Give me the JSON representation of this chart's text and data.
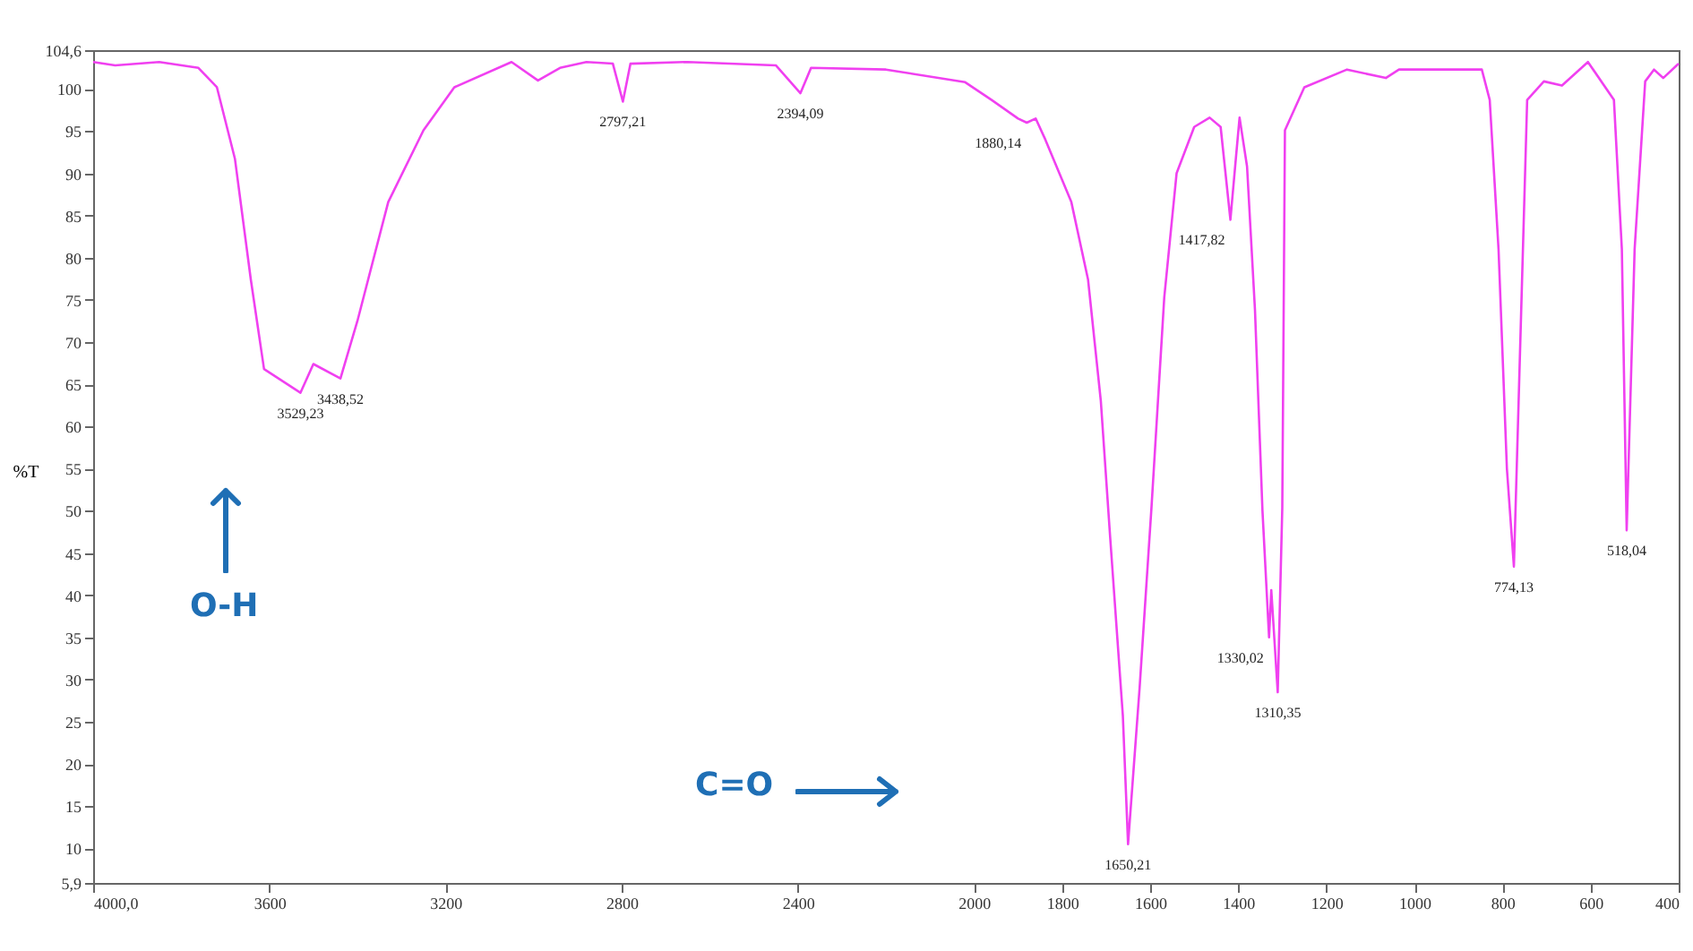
{
  "chart_data": {
    "type": "line",
    "ylabel": "%T",
    "xlim": [
      4000,
      400
    ],
    "xticks": [
      {
        "value": 4000,
        "label": "4000,0"
      },
      3600,
      3200,
      2800,
      2400,
      2000,
      1800,
      1600,
      1400,
      1200,
      1000,
      800,
      600,
      400
    ],
    "ylim": [
      5.9,
      104.6
    ],
    "yticks": [
      {
        "value": 5.9,
        "label": "5,9"
      },
      10,
      15,
      20,
      25,
      30,
      35,
      40,
      45,
      50,
      55,
      60,
      65,
      70,
      75,
      80,
      85,
      90,
      95,
      100,
      {
        "value": 104.6,
        "label": "104,6"
      }
    ],
    "grid": false,
    "marker": "none",
    "line_style": "solid",
    "series": [
      {
        "color": "#f040f0",
        "x": [
          4000,
          3950,
          3850,
          3761,
          3719,
          3678,
          3642,
          3612,
          3529.23,
          3500,
          3438.52,
          3400,
          3330,
          3250,
          3180,
          3050,
          2990,
          2940,
          2880,
          2820,
          2797.21,
          2780,
          2650,
          2450,
          2394.09,
          2370,
          2200,
          2020,
          1960,
          1900,
          1880.14,
          1860,
          1838,
          1779,
          1741,
          1712,
          1691,
          1662,
          1650.21,
          1624,
          1597,
          1568,
          1540,
          1500,
          1465,
          1440,
          1417.82,
          1405,
          1397,
          1380,
          1362,
          1345,
          1330.02,
          1325,
          1310.35,
          1300,
          1294,
          1250,
          1153,
          1065,
          1035,
          847,
          829,
          809,
          790,
          774.13,
          765,
          744,
          706,
          665,
          606,
          547,
          529,
          518.04,
          500,
          476,
          456,
          435,
          400
        ],
        "values": [
          103.2,
          102.8,
          103.2,
          102.5,
          100.2,
          91.7,
          77.4,
          66.8,
          64,
          67.4,
          65.7,
          72.5,
          86.6,
          95.1,
          100.2,
          103.2,
          101,
          102.5,
          103.2,
          103,
          98.5,
          103,
          103.2,
          102.8,
          99.5,
          102.5,
          102.3,
          100.8,
          98.7,
          96.5,
          96,
          96.5,
          94,
          86.6,
          77.4,
          63,
          47,
          25.7,
          10.5,
          29,
          50.4,
          75.3,
          90,
          95.5,
          96.6,
          95.5,
          84.5,
          92,
          96.6,
          90.8,
          73.8,
          50,
          35,
          40.6,
          28.5,
          50.4,
          95.1,
          100.2,
          102.3,
          101.3,
          102.3,
          102.3,
          98.7,
          81,
          55,
          43.4,
          60,
          98.7,
          100.9,
          100.4,
          103.2,
          98.7,
          81,
          47.7,
          81,
          100.9,
          102.3,
          101.3,
          103
        ]
      }
    ],
    "annotations": [
      {
        "text": "3529,23",
        "x": 3529.23,
        "y": 64
      },
      {
        "text": "3438,52",
        "x": 3438.52,
        "y": 65.7
      },
      {
        "text": "2797,21",
        "x": 2797.21,
        "y": 98.5
      },
      {
        "text": "2394,09",
        "x": 2394.09,
        "y": 99.5
      },
      {
        "text": "1880,14",
        "x": 1880.14,
        "y": 96
      },
      {
        "text": "1417,82",
        "x": 1417.82,
        "y": 84.5
      },
      {
        "text": "1650,21",
        "x": 1650.21,
        "y": 10.5
      },
      {
        "text": "1330,02",
        "x": 1330.02,
        "y": 35
      },
      {
        "text": "1310,35",
        "x": 1310.35,
        "y": 28.5
      },
      {
        "text": "774,13",
        "x": 774.13,
        "y": 43.4
      },
      {
        "text": "518,04",
        "x": 518.04,
        "y": 47.7
      },
      "O-H",
      "C=O"
    ]
  }
}
